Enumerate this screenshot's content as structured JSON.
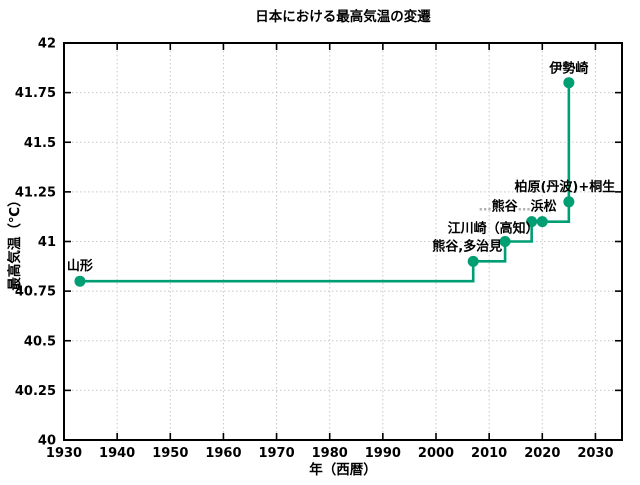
{
  "figure": {
    "background": "#ffffff"
  },
  "colors": {
    "series": "#009e73",
    "grid": "#c8c8c8",
    "axis": "#000000",
    "leader_dots": "#b3b3b3"
  },
  "chart_data": {
    "type": "line",
    "step": "post",
    "title": "日本における最高気温の変遷",
    "xlabel": "年（西暦）",
    "ylabel": "最高気温（℃）",
    "xlim": [
      1930,
      2035
    ],
    "ylim": [
      40,
      42
    ],
    "xticks": [
      1930,
      1940,
      1950,
      1960,
      1970,
      1980,
      1990,
      2000,
      2010,
      2020,
      2030
    ],
    "yticks": [
      40,
      40.25,
      40.5,
      40.75,
      41,
      41.25,
      41.5,
      41.75,
      42
    ],
    "grid": true,
    "legend": false,
    "series": [
      {
        "color": "#009e73",
        "points": [
          {
            "x": 1933,
            "y": 40.8
          },
          {
            "x": 2007,
            "y": 40.9
          },
          {
            "x": 2013,
            "y": 41.0
          },
          {
            "x": 2018,
            "y": 41.1
          },
          {
            "x": 2020,
            "y": 41.1
          },
          {
            "x": 2025,
            "y": 41.2
          },
          {
            "x": 2025,
            "y": 41.8
          }
        ]
      }
    ],
    "annotations": [
      {
        "text": "山形",
        "x": 1933,
        "y": 40.8
      },
      {
        "text": "熊谷,多治見",
        "x": 2007,
        "y": 40.9
      },
      {
        "text": "江川崎（高知）",
        "x": 2013,
        "y": 41.0
      },
      {
        "text": "…熊谷…浜松",
        "x": 2018,
        "y": 41.1
      },
      {
        "text": "柏原(丹波)+桐生",
        "x": 2025,
        "y": 41.2
      },
      {
        "text": "伊勢崎",
        "x": 2025,
        "y": 41.8
      }
    ]
  }
}
